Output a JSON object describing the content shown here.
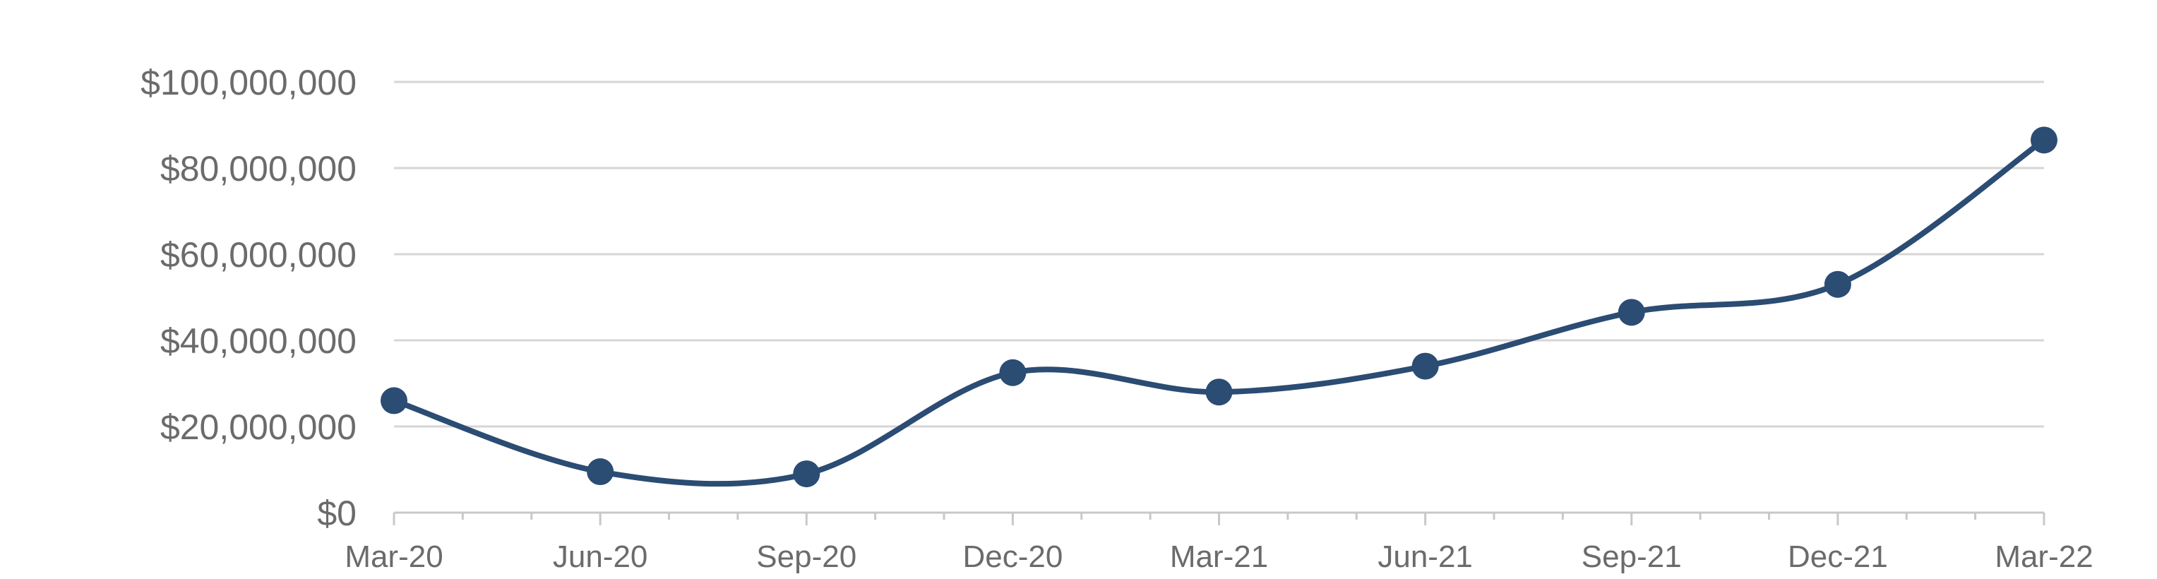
{
  "chart_data": {
    "type": "line",
    "categories": [
      "Mar-20",
      "Jun-20",
      "Sep-20",
      "Dec-20",
      "Mar-21",
      "Jun-21",
      "Sep-21",
      "Dec-21",
      "Mar-22"
    ],
    "series": [
      {
        "values": [
          26000000,
          9500000,
          9000000,
          32500000,
          28000000,
          34000000,
          46500000,
          53000000,
          86500000
        ]
      }
    ],
    "y_ticks": [
      "$0",
      "$20,000,000",
      "$40,000,000",
      "$60,000,000",
      "$80,000,000",
      "$100,000,000"
    ],
    "ylim": [
      0,
      100000000
    ],
    "grid": true,
    "title": "",
    "xlabel": "",
    "ylabel": "",
    "colors": {
      "series": "#2b4c73",
      "grid": "#d6d6d6",
      "axis": "#c8c8c8",
      "tick_text": "#6b6b6b"
    }
  }
}
